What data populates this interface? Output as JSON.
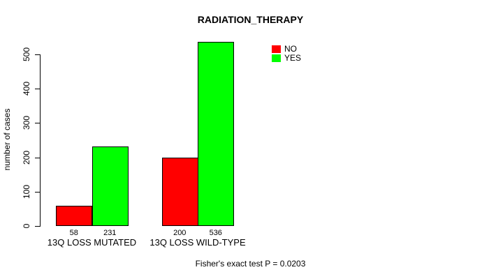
{
  "chart_data": {
    "type": "bar",
    "title": "RADIATION_THERAPY",
    "ylabel": "number of cases",
    "xlabel": "",
    "categories": [
      "13Q LOSS MUTATED",
      "13Q LOSS WILD-TYPE"
    ],
    "series": [
      {
        "name": "NO",
        "color": "#FF0000",
        "values": [
          58,
          200
        ]
      },
      {
        "name": "YES",
        "color": "#00FF00",
        "values": [
          231,
          536
        ]
      }
    ],
    "bar_value_labels": [
      [
        "58",
        "200"
      ],
      [
        "231",
        "536"
      ]
    ],
    "ylim": [
      0,
      500
    ],
    "yticks": [
      0,
      100,
      200,
      300,
      400,
      500
    ],
    "grid": false,
    "legend_position": "top-right",
    "annotation": "Fisher's exact test P = 0.0203"
  }
}
